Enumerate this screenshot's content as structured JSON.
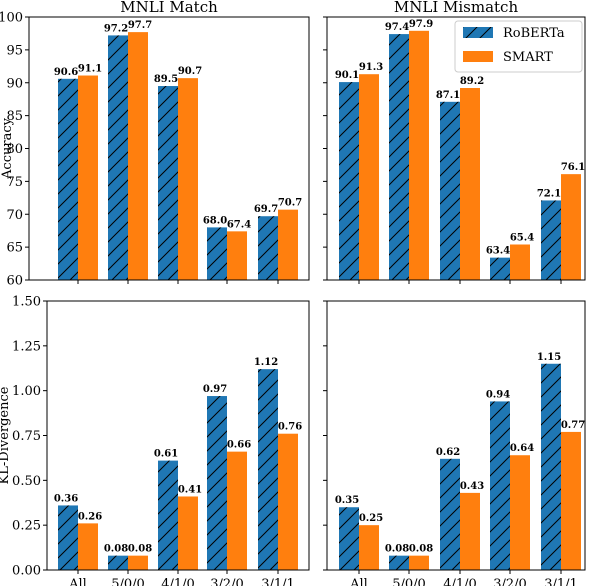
{
  "colors": {
    "roberta": "#1f77b4",
    "smart": "#ff7f0e",
    "axis": "#000000"
  },
  "legend": {
    "placement": "top-right of top-right panel",
    "items": [
      "RoBERTa",
      "SMART"
    ]
  },
  "chart_data": [
    {
      "type": "bar",
      "title": "MNLI Match",
      "xlabel": "",
      "ylabel": "Accuracy",
      "ylim": [
        60,
        100
      ],
      "yticks": [
        "60",
        "65",
        "70",
        "75",
        "80",
        "85",
        "90",
        "95",
        "100"
      ],
      "categories": [
        "All",
        "5/0/0",
        "4/1/0",
        "3/2/0",
        "3/1/1"
      ],
      "series": [
        {
          "name": "RoBERTa",
          "values": [
            90.6,
            97.2,
            89.5,
            68.0,
            69.7
          ],
          "labels": [
            "90.6",
            "97.2",
            "89.5",
            "68.0",
            "69.7"
          ]
        },
        {
          "name": "SMART",
          "values": [
            91.1,
            97.7,
            90.7,
            67.4,
            70.7
          ],
          "labels": [
            "91.1",
            "97.7",
            "90.7",
            "67.4",
            "70.7"
          ]
        }
      ]
    },
    {
      "type": "bar",
      "title": "MNLI Mismatch",
      "xlabel": "",
      "ylabel": "",
      "ylim": [
        60,
        100
      ],
      "yticks": [],
      "categories": [
        "All",
        "5/0/0",
        "4/1/0",
        "3/2/0",
        "3/1/1"
      ],
      "series": [
        {
          "name": "RoBERTa",
          "values": [
            90.1,
            97.4,
            87.1,
            63.4,
            72.1
          ],
          "labels": [
            "90.1",
            "97.4",
            "87.1",
            "63.4",
            "72.1"
          ]
        },
        {
          "name": "SMART",
          "values": [
            91.3,
            97.9,
            89.2,
            65.4,
            76.1
          ],
          "labels": [
            "91.3",
            "97.9",
            "89.2",
            "65.4",
            "76.1"
          ]
        }
      ]
    },
    {
      "type": "bar",
      "title": "",
      "xlabel": "",
      "ylabel": "KL-Divergence",
      "ylim": [
        0,
        1.5
      ],
      "yticks": [
        "0.00",
        "0.25",
        "0.50",
        "0.75",
        "1.00",
        "1.25",
        "1.50"
      ],
      "categories": [
        "All",
        "5/0/0",
        "4/1/0",
        "3/2/0",
        "3/1/1"
      ],
      "series": [
        {
          "name": "RoBERTa",
          "values": [
            0.36,
            0.08,
            0.61,
            0.97,
            1.12
          ],
          "labels": [
            "0.36",
            "0.08",
            "0.61",
            "0.97",
            "1.12"
          ]
        },
        {
          "name": "SMART",
          "values": [
            0.26,
            0.08,
            0.41,
            0.66,
            0.76
          ],
          "labels": [
            "0.26",
            "0.08",
            "0.41",
            "0.66",
            "0.76"
          ]
        }
      ]
    },
    {
      "type": "bar",
      "title": "",
      "xlabel": "",
      "ylabel": "",
      "ylim": [
        0,
        1.5
      ],
      "yticks": [],
      "categories": [
        "All",
        "5/0/0",
        "4/1/0",
        "3/2/0",
        "3/1/1"
      ],
      "series": [
        {
          "name": "RoBERTa",
          "values": [
            0.35,
            0.08,
            0.62,
            0.94,
            1.15
          ],
          "labels": [
            "0.35",
            "0.08",
            "0.62",
            "0.94",
            "1.15"
          ]
        },
        {
          "name": "SMART",
          "values": [
            0.25,
            0.08,
            0.43,
            0.64,
            0.77
          ],
          "labels": [
            "0.25",
            "0.08",
            "0.43",
            "0.64",
            "0.77"
          ]
        }
      ]
    }
  ]
}
